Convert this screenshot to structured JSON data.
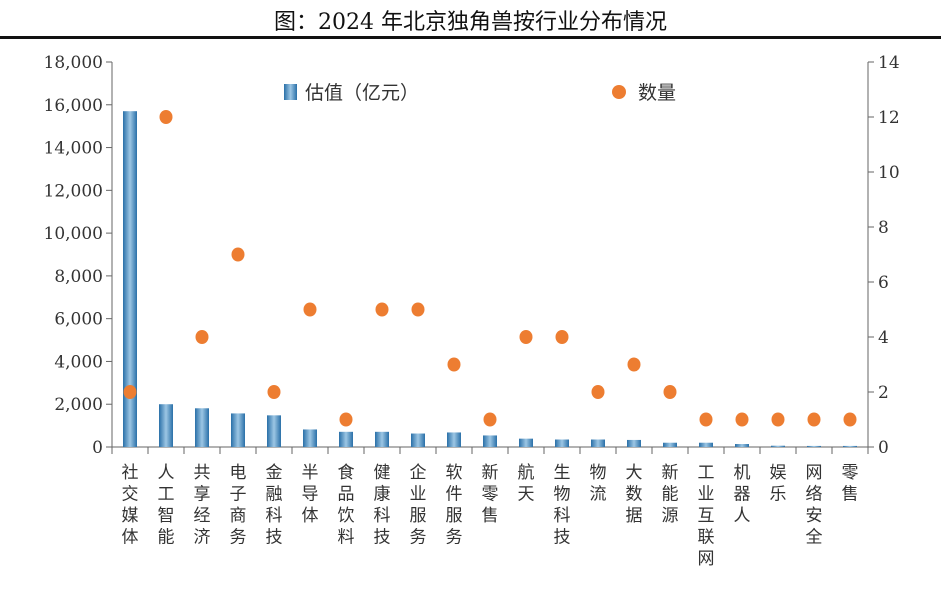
{
  "title": "图：2024 年北京独角兽按行业分布情况",
  "chart_data": {
    "type": "bar+scatter",
    "title": "图：2024 年北京独角兽按行业分布情况",
    "categories": [
      "社交媒体",
      "人工智能",
      "共享经济",
      "电子商务",
      "金融科技",
      "半导体",
      "食品饮料",
      "健康科技",
      "企业服务",
      "软件服务",
      "新零售",
      "航天",
      "生物科技",
      "物流",
      "大数据",
      "新能源",
      "工业互联网",
      "机器人",
      "娱乐",
      "网络安全",
      "零售"
    ],
    "series": [
      {
        "name": "估值（亿元）",
        "type": "bar",
        "axis": "left",
        "color": "#3a86bd",
        "values": [
          15700,
          2000,
          1810,
          1570,
          1480,
          820,
          710,
          710,
          630,
          680,
          540,
          390,
          350,
          350,
          330,
          200,
          200,
          140,
          60,
          50,
          50
        ]
      },
      {
        "name": "数量",
        "type": "scatter",
        "axis": "right",
        "color": "#ed7d31",
        "values": [
          2,
          12,
          4,
          7,
          2,
          5,
          1,
          5,
          5,
          3,
          1,
          4,
          4,
          2,
          3,
          2,
          1,
          1,
          1,
          1,
          1
        ]
      }
    ],
    "left_axis": {
      "range": [
        0,
        18000
      ],
      "ticks": [
        "0",
        "2,000",
        "4,000",
        "6,000",
        "8,000",
        "10,000",
        "12,000",
        "14,000",
        "16,000",
        "18,000"
      ]
    },
    "right_axis": {
      "range": [
        0,
        14
      ],
      "ticks": [
        "0",
        "2",
        "4",
        "6",
        "8",
        "10",
        "12",
        "14"
      ]
    },
    "grid": false,
    "legend": "top"
  }
}
